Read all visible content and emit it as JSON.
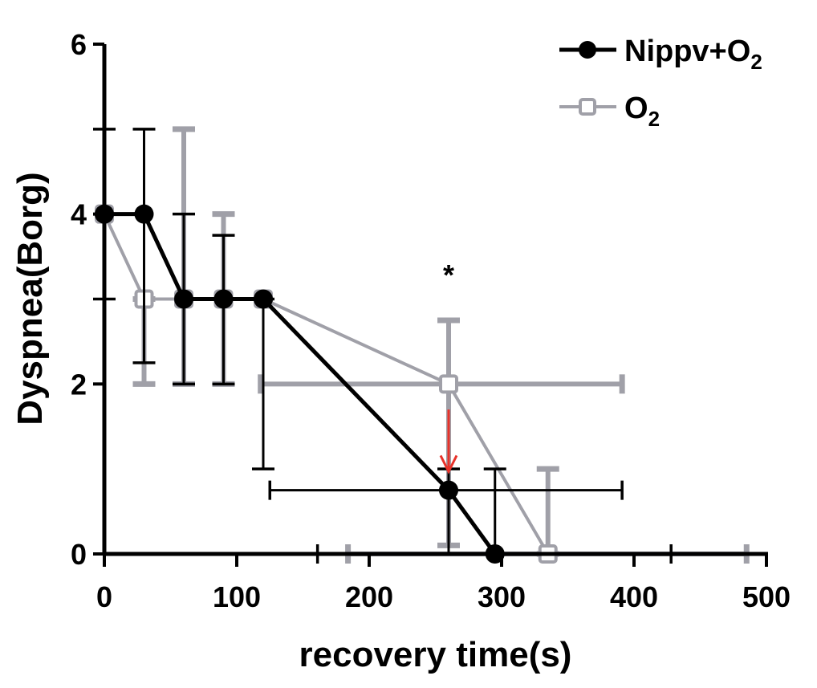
{
  "chart_data": {
    "type": "line",
    "title": "",
    "xlabel": "recovery time(s)",
    "ylabel": "Dyspnea(Borg)",
    "xlim": [
      0,
      500
    ],
    "ylim": [
      0,
      6
    ],
    "xticks": [
      0,
      100,
      200,
      300,
      400,
      500
    ],
    "yticks": [
      0,
      2,
      4,
      6
    ],
    "legend_position": "top-right",
    "series": [
      {
        "name": "Nippv+O",
        "name_sub": "2",
        "color": "#000000",
        "marker": "filled-circle",
        "x": [
          0,
          30,
          60,
          90,
          120,
          260,
          295
        ],
        "y": [
          4,
          4,
          3,
          3,
          3,
          0.75,
          0
        ],
        "y_err": [
          [
            3,
            5
          ],
          [
            2.25,
            5
          ],
          [
            2,
            4
          ],
          [
            2,
            3.75
          ],
          [
            1,
            3
          ],
          [
            0,
            1
          ],
          [
            0,
            1
          ]
        ],
        "x_err": [
          null,
          null,
          null,
          null,
          null,
          [
            125,
            391
          ],
          [
            161,
            428
          ]
        ]
      },
      {
        "name": "O",
        "name_sub": "2",
        "color": "#a0a0a8",
        "marker": "open-square",
        "x": [
          0,
          30,
          60,
          90,
          120,
          260,
          335
        ],
        "y": [
          4,
          3,
          3,
          3,
          3,
          2,
          0
        ],
        "y_err": [
          [
            4,
            4
          ],
          [
            2,
            3
          ],
          [
            2,
            5
          ],
          [
            2,
            4
          ],
          [
            3,
            3
          ],
          [
            0.1,
            2.75
          ],
          [
            0,
            1
          ]
        ],
        "x_err": [
          null,
          null,
          null,
          null,
          null,
          [
            118,
            391
          ],
          [
            184,
            485
          ]
        ]
      }
    ],
    "annotations": [
      {
        "text": "*",
        "x": 260,
        "y": 3.3
      },
      {
        "type": "arrow",
        "color": "#e8322a",
        "x": 260,
        "from_y": 1.7,
        "to_y": 0.95
      }
    ]
  }
}
